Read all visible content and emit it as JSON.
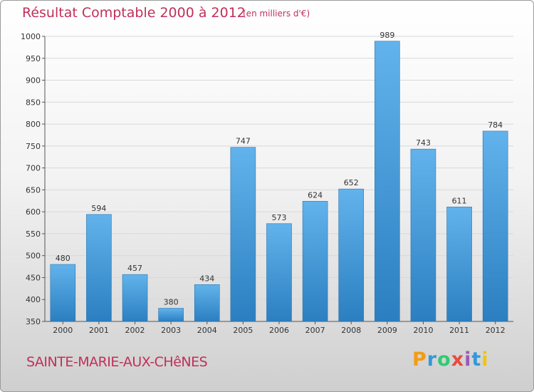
{
  "title": "Résultat Comptable 2000 à 2012",
  "subtitle": "(en milliers d'€)",
  "place": "SAINTE-MARIE-AUX-CHêNES",
  "logo": {
    "letters": [
      "P",
      "r",
      "o",
      "x",
      "i",
      "t",
      "i"
    ],
    "colors": [
      "#f39c12",
      "#3498db",
      "#2ecc71",
      "#e74c3c",
      "#9b59b6",
      "#3498db",
      "#f1c40f"
    ]
  },
  "colors": {
    "bar_top": "#62b3ec",
    "bar_bottom": "#2b7fc0",
    "text_accent": "#c0305a",
    "grid": "#d8d8d8"
  },
  "chart_data": {
    "type": "bar",
    "categories": [
      "2000",
      "2001",
      "2002",
      "2003",
      "2004",
      "2005",
      "2006",
      "2007",
      "2008",
      "2009",
      "2010",
      "2011",
      "2012"
    ],
    "values": [
      480,
      594,
      457,
      380,
      434,
      747,
      573,
      624,
      652,
      989,
      743,
      611,
      784
    ],
    "title": "Résultat Comptable 2000 à 2012",
    "xlabel": "",
    "ylabel": "",
    "ylim": [
      350,
      1000
    ],
    "yticks": [
      350,
      400,
      450,
      500,
      550,
      600,
      650,
      700,
      750,
      800,
      850,
      900,
      950,
      1000
    ],
    "grid": true,
    "legend": "none"
  }
}
